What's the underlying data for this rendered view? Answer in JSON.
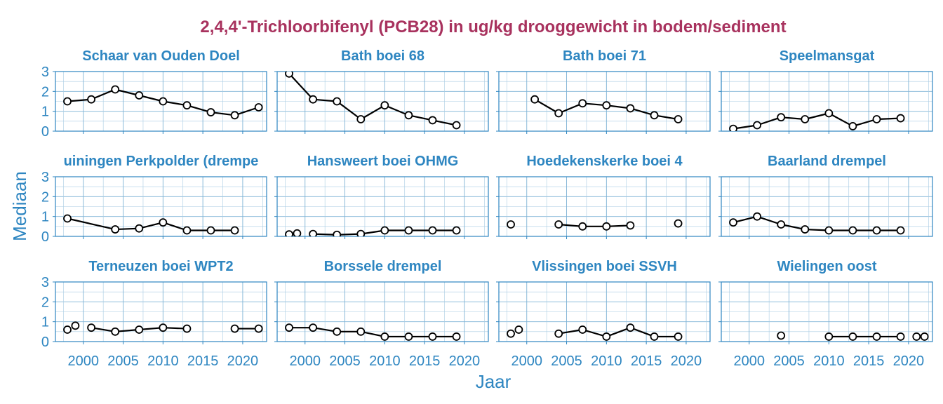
{
  "chart_data": {
    "type": "line",
    "title": "2,4,4'-Trichloorbifenyl (PCB28) in ug/kg drooggewicht in bodem/sediment",
    "xlabel": "Jaar",
    "ylabel": "Mediaan",
    "xlim": [
      1996.5,
      2023
    ],
    "ylim": [
      0,
      3
    ],
    "xticks": [
      2000,
      2005,
      2010,
      2015,
      2020
    ],
    "yticks": [
      0,
      1,
      2,
      3
    ],
    "grid": true,
    "colors": {
      "accent": "#2e86c1",
      "title": "#a8325e",
      "line": "#000000"
    },
    "panels": [
      {
        "name": "Schaar van Ouden Doel",
        "x": [
          1998,
          2001,
          2004,
          2007,
          2010,
          2013,
          2016,
          2019,
          2022
        ],
        "y": [
          1.5,
          1.6,
          2.1,
          1.8,
          1.5,
          1.3,
          0.95,
          0.8,
          1.2
        ]
      },
      {
        "name": "Bath boei 68",
        "x": [
          1998,
          2001,
          2004,
          2007,
          2010,
          2013,
          2016,
          2019
        ],
        "y": [
          2.9,
          1.6,
          1.5,
          0.6,
          1.3,
          0.8,
          0.55,
          0.3
        ]
      },
      {
        "name": "Bath boei 71",
        "x": [
          2001,
          2004,
          2007,
          2010,
          2013,
          2016,
          2019
        ],
        "y": [
          1.6,
          0.9,
          1.4,
          1.3,
          1.15,
          0.8,
          0.6
        ]
      },
      {
        "name": "Speelmansgat",
        "x": [
          1998,
          2001,
          2004,
          2007,
          2010,
          2013,
          2016,
          2019
        ],
        "y": [
          0.12,
          0.3,
          0.7,
          0.6,
          0.9,
          0.25,
          0.6,
          0.65
        ]
      },
      {
        "name": "uiningen Perkpolder (drempe",
        "x": [
          1998,
          2004,
          2007,
          2010,
          2013,
          2016,
          2019
        ],
        "y": [
          0.9,
          0.35,
          0.4,
          0.7,
          0.3,
          0.3,
          0.3
        ]
      },
      {
        "name": "Hansweert boei OHMG",
        "x": [
          1998,
          1999,
          2001,
          2004,
          2007,
          2010,
          2013,
          2016,
          2019
        ],
        "y": [
          0.1,
          0.15,
          0.12,
          0.08,
          0.12,
          0.3,
          0.3,
          0.3,
          0.3
        ]
      },
      {
        "name": "Hoedekenskerke boei 4",
        "x": [
          1998,
          2004,
          2007,
          2010,
          2013,
          2019
        ],
        "y": [
          0.6,
          0.6,
          0.5,
          0.5,
          0.55,
          0.65
        ]
      },
      {
        "name": "Baarland drempel",
        "x": [
          1998,
          2001,
          2004,
          2007,
          2010,
          2013,
          2016,
          2019
        ],
        "y": [
          0.7,
          1.0,
          0.6,
          0.35,
          0.3,
          0.3,
          0.3,
          0.3
        ]
      },
      {
        "name": "Terneuzen boei WPT2",
        "x": [
          1998,
          1999,
          2001,
          2004,
          2007,
          2010,
          2013,
          2019,
          2022
        ],
        "y": [
          0.6,
          0.8,
          0.7,
          0.5,
          0.6,
          0.7,
          0.65,
          0.65,
          0.65
        ]
      },
      {
        "name": "Borssele drempel",
        "x": [
          1998,
          2001,
          2004,
          2007,
          2010,
          2013,
          2016,
          2019
        ],
        "y": [
          0.7,
          0.7,
          0.5,
          0.5,
          0.25,
          0.25,
          0.25,
          0.25
        ]
      },
      {
        "name": "Vlissingen boei SSVH",
        "x": [
          1998,
          1999,
          2004,
          2007,
          2010,
          2013,
          2016,
          2019
        ],
        "y": [
          0.4,
          0.6,
          0.4,
          0.6,
          0.25,
          0.7,
          0.25,
          0.25
        ]
      },
      {
        "name": "Wielingen oost",
        "x": [
          2004,
          2010,
          2013,
          2016,
          2019,
          2021,
          2022
        ],
        "y": [
          0.3,
          0.25,
          0.25,
          0.25,
          0.25,
          0.25,
          0.25
        ]
      }
    ]
  }
}
